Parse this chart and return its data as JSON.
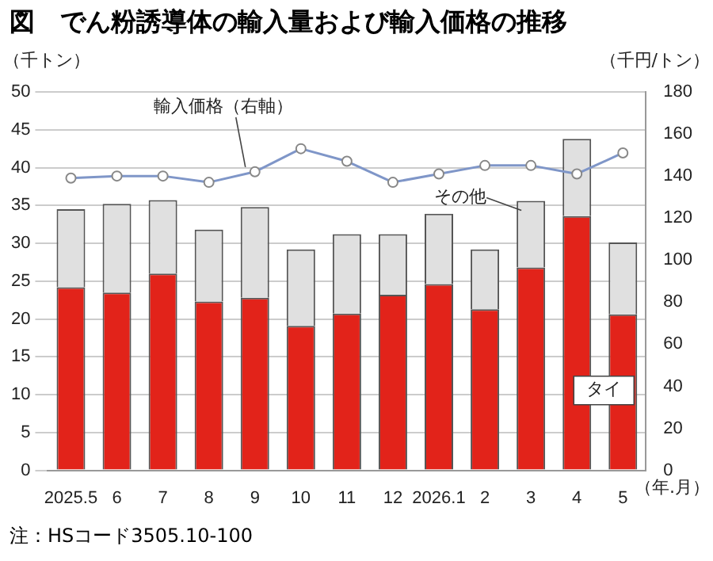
{
  "chart_data": {
    "type": "bar",
    "title": "図　でん粉誘導体の輸入量および輸入価格の推移",
    "categories": [
      "2025.5",
      "6",
      "7",
      "8",
      "9",
      "10",
      "11",
      "12",
      "2026.1",
      "2",
      "3",
      "4",
      "5"
    ],
    "xlabel": "（年.月）",
    "ylabel": "（千トン）",
    "y2label": "（千円/トン）",
    "stacked": true,
    "grid": "y",
    "legend": false,
    "ylim": [
      0,
      50
    ],
    "yticks": [
      0,
      5,
      10,
      15,
      20,
      25,
      30,
      35,
      40,
      45,
      50
    ],
    "y2lim": [
      0,
      180
    ],
    "y2ticks": [
      0,
      20,
      40,
      60,
      80,
      100,
      120,
      140,
      160,
      180
    ],
    "series": [
      {
        "name": "タイ",
        "color": "#e2231a",
        "values": [
          24.2,
          23.5,
          26.0,
          22.3,
          22.8,
          19.1,
          20.7,
          23.2,
          24.6,
          21.3,
          26.8,
          33.6,
          20.6
        ]
      },
      {
        "name": "その他",
        "color": "#e0e0e0",
        "values": [
          10.3,
          11.7,
          9.7,
          9.5,
          12.0,
          10.1,
          10.5,
          8.0,
          9.3,
          7.9,
          8.8,
          10.2,
          9.5
        ]
      },
      {
        "name": "輸入価格（右軸）",
        "type": "line",
        "axis": "y2",
        "color": "#7f96c8",
        "marker": "circle",
        "values": [
          139,
          140,
          140,
          137,
          142,
          153,
          147,
          137,
          141,
          145,
          145,
          141,
          151
        ]
      }
    ],
    "annotations": [
      "注：HSコード3505.10-100"
    ]
  }
}
